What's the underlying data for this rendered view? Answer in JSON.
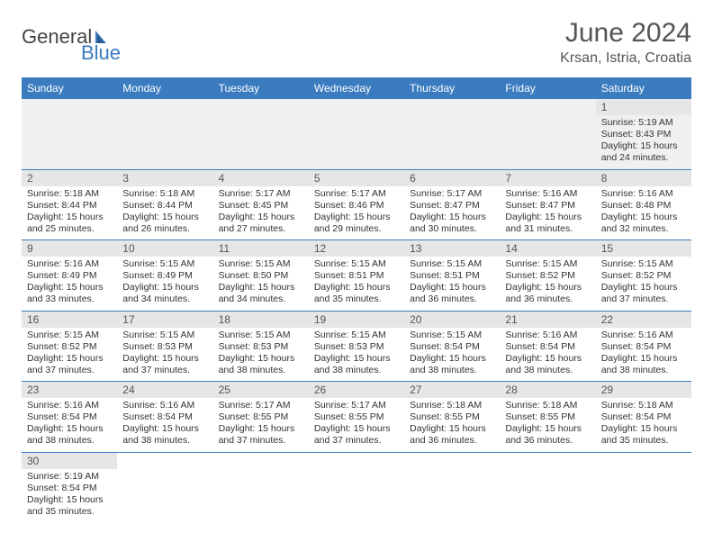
{
  "logo": {
    "text1": "General",
    "text2": "Blue"
  },
  "title": "June 2024",
  "location": "Krsan, Istria, Croatia",
  "colors": {
    "header_bg": "#3b7bbf",
    "header_text": "#ffffff",
    "daynum_bg": "#e6e6e6",
    "row_divider": "#3b7bbf",
    "empty_bg": "#f0f0f0",
    "text": "#333333",
    "title_text": "#555555"
  },
  "weekdays": [
    "Sunday",
    "Monday",
    "Tuesday",
    "Wednesday",
    "Thursday",
    "Friday",
    "Saturday"
  ],
  "layout": {
    "first_weekday_index": 6,
    "days_in_month": 30
  },
  "days": {
    "1": {
      "sunrise": "5:19 AM",
      "sunset": "8:43 PM",
      "daylight": "15 hours and 24 minutes."
    },
    "2": {
      "sunrise": "5:18 AM",
      "sunset": "8:44 PM",
      "daylight": "15 hours and 25 minutes."
    },
    "3": {
      "sunrise": "5:18 AM",
      "sunset": "8:44 PM",
      "daylight": "15 hours and 26 minutes."
    },
    "4": {
      "sunrise": "5:17 AM",
      "sunset": "8:45 PM",
      "daylight": "15 hours and 27 minutes."
    },
    "5": {
      "sunrise": "5:17 AM",
      "sunset": "8:46 PM",
      "daylight": "15 hours and 29 minutes."
    },
    "6": {
      "sunrise": "5:17 AM",
      "sunset": "8:47 PM",
      "daylight": "15 hours and 30 minutes."
    },
    "7": {
      "sunrise": "5:16 AM",
      "sunset": "8:47 PM",
      "daylight": "15 hours and 31 minutes."
    },
    "8": {
      "sunrise": "5:16 AM",
      "sunset": "8:48 PM",
      "daylight": "15 hours and 32 minutes."
    },
    "9": {
      "sunrise": "5:16 AM",
      "sunset": "8:49 PM",
      "daylight": "15 hours and 33 minutes."
    },
    "10": {
      "sunrise": "5:15 AM",
      "sunset": "8:49 PM",
      "daylight": "15 hours and 34 minutes."
    },
    "11": {
      "sunrise": "5:15 AM",
      "sunset": "8:50 PM",
      "daylight": "15 hours and 34 minutes."
    },
    "12": {
      "sunrise": "5:15 AM",
      "sunset": "8:51 PM",
      "daylight": "15 hours and 35 minutes."
    },
    "13": {
      "sunrise": "5:15 AM",
      "sunset": "8:51 PM",
      "daylight": "15 hours and 36 minutes."
    },
    "14": {
      "sunrise": "5:15 AM",
      "sunset": "8:52 PM",
      "daylight": "15 hours and 36 minutes."
    },
    "15": {
      "sunrise": "5:15 AM",
      "sunset": "8:52 PM",
      "daylight": "15 hours and 37 minutes."
    },
    "16": {
      "sunrise": "5:15 AM",
      "sunset": "8:52 PM",
      "daylight": "15 hours and 37 minutes."
    },
    "17": {
      "sunrise": "5:15 AM",
      "sunset": "8:53 PM",
      "daylight": "15 hours and 37 minutes."
    },
    "18": {
      "sunrise": "5:15 AM",
      "sunset": "8:53 PM",
      "daylight": "15 hours and 38 minutes."
    },
    "19": {
      "sunrise": "5:15 AM",
      "sunset": "8:53 PM",
      "daylight": "15 hours and 38 minutes."
    },
    "20": {
      "sunrise": "5:15 AM",
      "sunset": "8:54 PM",
      "daylight": "15 hours and 38 minutes."
    },
    "21": {
      "sunrise": "5:16 AM",
      "sunset": "8:54 PM",
      "daylight": "15 hours and 38 minutes."
    },
    "22": {
      "sunrise": "5:16 AM",
      "sunset": "8:54 PM",
      "daylight": "15 hours and 38 minutes."
    },
    "23": {
      "sunrise": "5:16 AM",
      "sunset": "8:54 PM",
      "daylight": "15 hours and 38 minutes."
    },
    "24": {
      "sunrise": "5:16 AM",
      "sunset": "8:54 PM",
      "daylight": "15 hours and 38 minutes."
    },
    "25": {
      "sunrise": "5:17 AM",
      "sunset": "8:55 PM",
      "daylight": "15 hours and 37 minutes."
    },
    "26": {
      "sunrise": "5:17 AM",
      "sunset": "8:55 PM",
      "daylight": "15 hours and 37 minutes."
    },
    "27": {
      "sunrise": "5:18 AM",
      "sunset": "8:55 PM",
      "daylight": "15 hours and 36 minutes."
    },
    "28": {
      "sunrise": "5:18 AM",
      "sunset": "8:55 PM",
      "daylight": "15 hours and 36 minutes."
    },
    "29": {
      "sunrise": "5:18 AM",
      "sunset": "8:54 PM",
      "daylight": "15 hours and 35 minutes."
    },
    "30": {
      "sunrise": "5:19 AM",
      "sunset": "8:54 PM",
      "daylight": "15 hours and 35 minutes."
    }
  },
  "labels": {
    "sunrise": "Sunrise:",
    "sunset": "Sunset:",
    "daylight": "Daylight:"
  }
}
